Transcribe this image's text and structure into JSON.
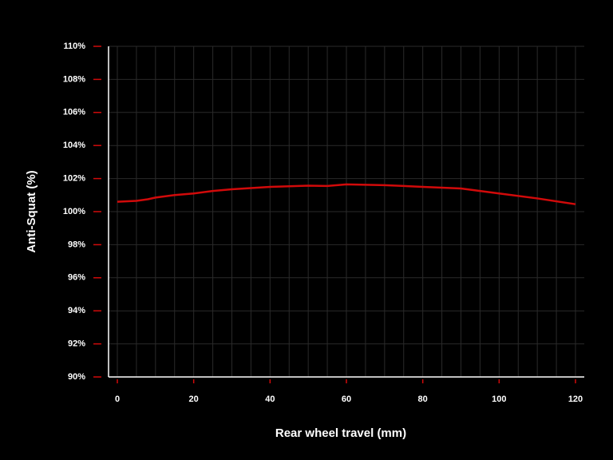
{
  "chart_data": {
    "type": "line",
    "x_label": "Rear wheel travel (mm)",
    "y_label": "Anti-Squat (%)",
    "x": [
      0,
      5,
      8,
      10,
      15,
      20,
      25,
      30,
      40,
      50,
      55,
      60,
      70,
      80,
      90,
      100,
      110,
      120
    ],
    "series": [
      {
        "name": "Anti-Squat",
        "color": "#d10a0a",
        "values": [
          100.6,
          100.65,
          100.75,
          100.85,
          101.0,
          101.1,
          101.25,
          101.35,
          101.5,
          101.57,
          101.55,
          101.65,
          101.6,
          101.5,
          101.4,
          101.1,
          100.8,
          100.45
        ]
      }
    ],
    "xlim": [
      -2.3,
      122.3
    ],
    "xticks": [
      0,
      20,
      40,
      60,
      80,
      100,
      120
    ],
    "xgrid": [
      0,
      5,
      10,
      15,
      20,
      25,
      30,
      35,
      40,
      45,
      50,
      55,
      60,
      65,
      70,
      75,
      80,
      85,
      90,
      95,
      100,
      105,
      110,
      115,
      120
    ],
    "ylim": [
      90,
      110
    ],
    "yticks": [
      {
        "value": 90,
        "label": "90%"
      },
      {
        "value": 92,
        "label": "92%"
      },
      {
        "value": 94,
        "label": "94%"
      },
      {
        "value": 96,
        "label": "96%"
      },
      {
        "value": 98,
        "label": "98%"
      },
      {
        "value": 100,
        "label": "100%"
      },
      {
        "value": 102,
        "label": "102%"
      },
      {
        "value": 104,
        "label": "104%"
      },
      {
        "value": 106,
        "label": "106%"
      },
      {
        "value": 108,
        "label": "108%"
      },
      {
        "value": 110,
        "label": "110%"
      }
    ],
    "grid": true
  }
}
